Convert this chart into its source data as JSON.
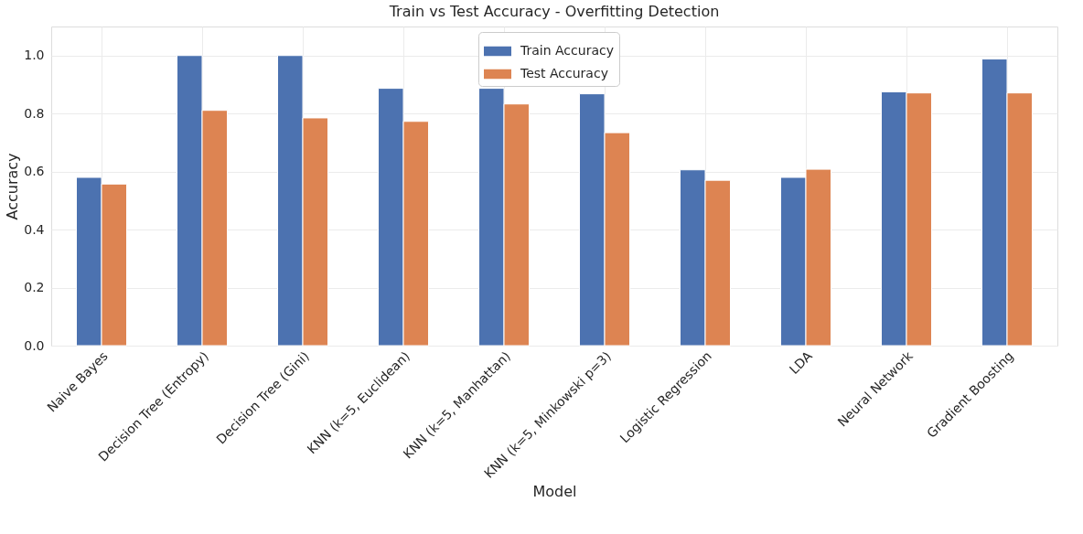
{
  "chart_data": {
    "type": "bar",
    "title": "Train vs Test Accuracy - Overfitting Detection",
    "xlabel": "Model",
    "ylabel": "Accuracy",
    "categories": [
      "Naive Bayes",
      "Decision Tree (Entropy)",
      "Decision Tree (Gini)",
      "KNN (k=5, Euclidean)",
      "KNN (k=5, Manhattan)",
      "KNN (k=5, Minkowski p=3)",
      "Logistic Regression",
      "LDA",
      "Neural Network",
      "Gradient Boosting"
    ],
    "series": [
      {
        "name": "Train Accuracy",
        "color": "#4c72b0",
        "values": [
          0.58,
          1.0,
          1.0,
          0.887,
          0.887,
          0.868,
          0.606,
          0.58,
          0.875,
          0.988
        ]
      },
      {
        "name": "Test Accuracy",
        "color": "#dd8452",
        "values": [
          0.557,
          0.811,
          0.785,
          0.773,
          0.833,
          0.734,
          0.57,
          0.608,
          0.871,
          0.871
        ]
      }
    ],
    "ylim": [
      0,
      1.1
    ],
    "yticks": [
      {
        "value": 0,
        "label": "0.0"
      },
      0.2,
      0.4,
      0.6,
      0.8,
      {
        "value": 1,
        "label": "1.0"
      }
    ],
    "grid": true,
    "legend": "top"
  }
}
